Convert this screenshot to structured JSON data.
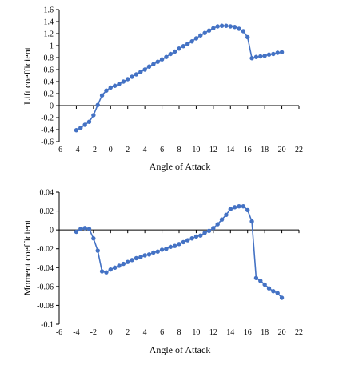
{
  "colors": {
    "series": "#4472C4",
    "axis": "#000000",
    "text": "#000000",
    "background": "#ffffff"
  },
  "chart_data": [
    {
      "type": "line",
      "xlabel": "Angle of Attack",
      "ylabel": "Lift coefficient",
      "xlim": [
        -6,
        22
      ],
      "ylim": [
        -0.6,
        1.6
      ],
      "x_ticks": [
        "-6",
        "-4",
        "-2",
        "0",
        "2",
        "4",
        "6",
        "8",
        "10",
        "12",
        "14",
        "16",
        "18",
        "20",
        "22"
      ],
      "y_ticks": [
        "-0.6",
        "-0.4",
        "-0.2",
        "0",
        "0.2",
        "0.4",
        "0.6",
        "0.8",
        "1",
        "1.2",
        "1.4",
        "1.6"
      ],
      "grid": false,
      "series": [
        {
          "x": [
            -4,
            -3.5,
            -3,
            -2.5,
            -2,
            -1.5,
            -1,
            -0.5,
            0,
            0.5,
            1,
            1.5,
            2,
            2.5,
            3,
            3.5,
            4,
            4.5,
            5,
            5.5,
            6,
            6.5,
            7,
            7.5,
            8,
            8.5,
            9,
            9.5,
            10,
            10.5,
            11,
            11.5,
            12,
            12.5,
            13,
            13.5,
            14,
            14.5,
            15,
            15.5,
            16,
            16.5,
            17,
            17.5,
            18,
            18.5,
            19,
            19.5,
            20
          ],
          "y": [
            -0.41,
            -0.37,
            -0.32,
            -0.27,
            -0.16,
            0.01,
            0.17,
            0.25,
            0.3,
            0.33,
            0.36,
            0.4,
            0.44,
            0.48,
            0.52,
            0.56,
            0.6,
            0.65,
            0.69,
            0.73,
            0.77,
            0.81,
            0.86,
            0.9,
            0.95,
            0.99,
            1.03,
            1.07,
            1.12,
            1.17,
            1.21,
            1.25,
            1.29,
            1.32,
            1.33,
            1.33,
            1.32,
            1.31,
            1.28,
            1.24,
            1.14,
            0.79,
            0.81,
            0.82,
            0.83,
            0.85,
            0.86,
            0.88,
            0.89
          ]
        }
      ]
    },
    {
      "type": "line",
      "xlabel": "Angle of Attack",
      "ylabel": "Moment coefficient",
      "xlim": [
        -6,
        22
      ],
      "ylim": [
        -0.1,
        0.04
      ],
      "x_ticks": [
        "-6",
        "-4",
        "-2",
        "0",
        "2",
        "4",
        "6",
        "8",
        "10",
        "12",
        "14",
        "16",
        "18",
        "20",
        "22"
      ],
      "y_ticks": [
        "-0.1",
        "-0.08",
        "-0.06",
        "-0.04",
        "-0.02",
        "0",
        "0.02",
        "0.04"
      ],
      "grid": false,
      "series": [
        {
          "x": [
            -4,
            -3.5,
            -3,
            -2.5,
            -2,
            -1.5,
            -1,
            -0.5,
            0,
            0.5,
            1,
            1.5,
            2,
            2.5,
            3,
            3.5,
            4,
            4.5,
            5,
            5.5,
            6,
            6.5,
            7,
            7.5,
            8,
            8.5,
            9,
            9.5,
            10,
            10.5,
            11,
            11.5,
            12,
            12.5,
            13,
            13.5,
            14,
            14.5,
            15,
            15.5,
            16,
            16.5,
            17,
            17.5,
            18,
            18.5,
            19,
            19.5,
            20
          ],
          "y": [
            -0.002,
            0.001,
            0.002,
            0.001,
            -0.009,
            -0.022,
            -0.044,
            -0.045,
            -0.042,
            -0.04,
            -0.038,
            -0.036,
            -0.034,
            -0.032,
            -0.03,
            -0.029,
            -0.027,
            -0.026,
            -0.024,
            -0.023,
            -0.021,
            -0.02,
            -0.018,
            -0.017,
            -0.015,
            -0.013,
            -0.011,
            -0.009,
            -0.007,
            -0.006,
            -0.003,
            -0.001,
            0.002,
            0.006,
            0.011,
            0.016,
            0.022,
            0.024,
            0.025,
            0.025,
            0.021,
            0.009,
            -0.051,
            -0.054,
            -0.058,
            -0.062,
            -0.065,
            -0.067,
            -0.072
          ]
        }
      ]
    }
  ]
}
